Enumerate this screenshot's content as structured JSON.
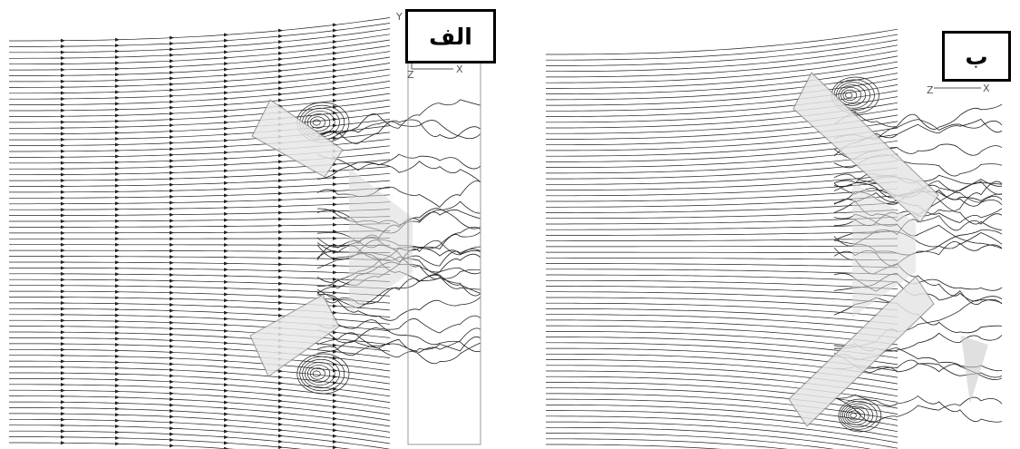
{
  "panels": [
    {
      "id": "a",
      "label": "الف",
      "axis": {
        "x": "X",
        "y": "Y",
        "z": "Z"
      }
    },
    {
      "id": "b",
      "label": "ب",
      "axis": {
        "x": "X",
        "z": "Z"
      }
    }
  ],
  "colors": {
    "streamline": "#222222",
    "body": "#cfcfcf",
    "background": "#ffffff"
  }
}
